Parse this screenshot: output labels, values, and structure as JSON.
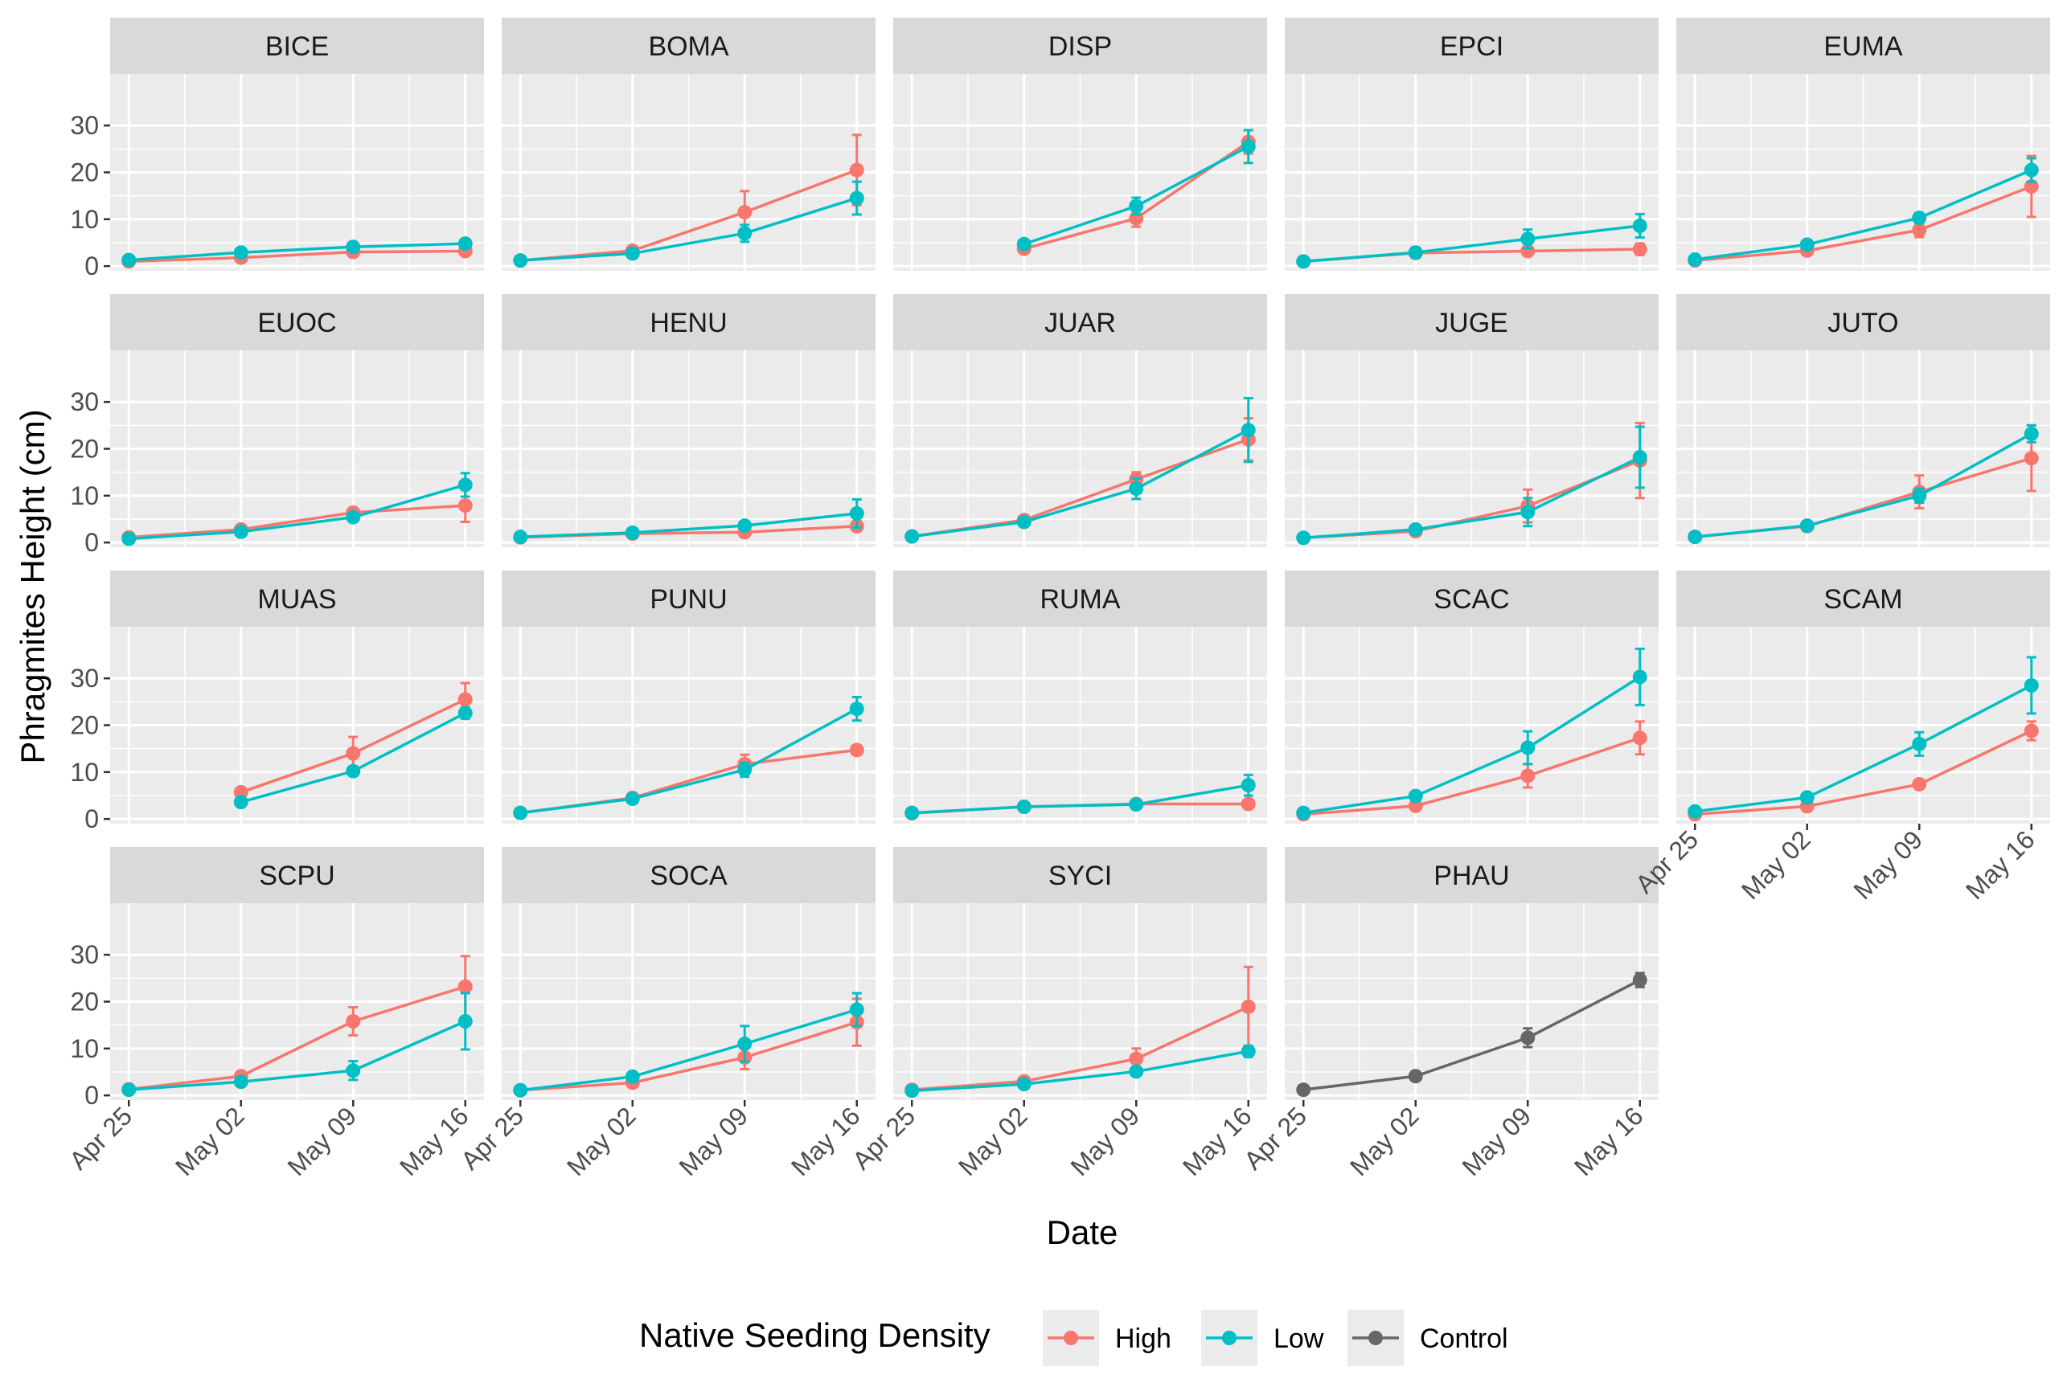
{
  "chart_data": {
    "type": "line",
    "subtype": "faceted line chart with error bars",
    "xlabel": "Date",
    "ylabel": "Phragmites Height (cm)",
    "x_ticks": [
      "Apr 25",
      "May 02",
      "May 09",
      "May 16"
    ],
    "y_ticks": [
      0,
      10,
      20,
      30
    ],
    "ylim": [
      -1,
      41
    ],
    "grid": true,
    "legend": {
      "title": "Native Seeding Density",
      "position": "bottom",
      "entries": [
        {
          "name": "High",
          "color": "#F8766D"
        },
        {
          "name": "Low",
          "color": "#00BFC4"
        },
        {
          "name": "Control",
          "color": "#666666"
        }
      ]
    },
    "panels": [
      {
        "name": "BICE",
        "series": [
          {
            "name": "High",
            "y": [
              1.0,
              1.8,
              3.0,
              3.2
            ],
            "err": [
              0.3,
              0.3,
              0.5,
              0.6
            ]
          },
          {
            "name": "Low",
            "y": [
              1.3,
              2.9,
              4.1,
              4.8
            ],
            "err": [
              0.3,
              0.4,
              0.6,
              0.9
            ]
          }
        ]
      },
      {
        "name": "BOMA",
        "series": [
          {
            "name": "High",
            "y": [
              1.2,
              3.3,
              11.5,
              20.5
            ],
            "err": [
              0.2,
              0.5,
              4.5,
              7.5
            ]
          },
          {
            "name": "Low",
            "y": [
              1.2,
              2.7,
              7.0,
              14.5
            ],
            "err": [
              0.2,
              0.4,
              1.8,
              3.5
            ]
          }
        ]
      },
      {
        "name": "DISP",
        "series": [
          {
            "name": "High",
            "y": [
              null,
              3.7,
              10.2,
              26.5
            ],
            "err": [
              0,
              0.8,
              1.8,
              2.5
            ]
          },
          {
            "name": "Low",
            "y": [
              null,
              4.7,
              12.8,
              25.5
            ],
            "err": [
              0,
              0.8,
              1.8,
              3.5
            ]
          }
        ]
      },
      {
        "name": "EPCI",
        "series": [
          {
            "name": "High",
            "y": [
              1.0,
              2.8,
              3.2,
              3.6
            ],
            "err": [
              0.2,
              0.4,
              0.5,
              1.2
            ]
          },
          {
            "name": "Low",
            "y": [
              1.0,
              2.9,
              5.8,
              8.6
            ],
            "err": [
              0.2,
              1.1,
              2.0,
              2.5
            ]
          }
        ]
      },
      {
        "name": "EUMA",
        "series": [
          {
            "name": "High",
            "y": [
              1.2,
              3.3,
              7.7,
              17.0
            ],
            "err": [
              0.2,
              0.5,
              1.5,
              6.5
            ]
          },
          {
            "name": "Low",
            "y": [
              1.4,
              4.6,
              10.3,
              20.5
            ],
            "err": [
              0.2,
              0.6,
              1.0,
              2.5
            ]
          }
        ]
      },
      {
        "name": "EUOC",
        "series": [
          {
            "name": "High",
            "y": [
              1.1,
              2.8,
              6.4,
              7.9
            ],
            "err": [
              0.2,
              0.4,
              0.8,
              3.5
            ]
          },
          {
            "name": "Low",
            "y": [
              0.8,
              2.3,
              5.4,
              12.3
            ],
            "err": [
              0.2,
              0.4,
              0.8,
              2.5
            ]
          }
        ]
      },
      {
        "name": "HENU",
        "series": [
          {
            "name": "High",
            "y": [
              1.1,
              1.9,
              2.2,
              3.5
            ],
            "err": [
              0.2,
              0.3,
              0.4,
              1.0
            ]
          },
          {
            "name": "Low",
            "y": [
              1.2,
              2.1,
              3.6,
              6.2
            ],
            "err": [
              0.2,
              0.3,
              0.6,
              3.0
            ]
          }
        ]
      },
      {
        "name": "JUAR",
        "series": [
          {
            "name": "High",
            "y": [
              1.3,
              4.8,
              13.5,
              22.0
            ],
            "err": [
              0.2,
              0.6,
              1.5,
              4.5
            ]
          },
          {
            "name": "Low",
            "y": [
              1.3,
              4.4,
              11.5,
              24.0
            ],
            "err": [
              0.2,
              0.6,
              2.2,
              6.8
            ]
          }
        ]
      },
      {
        "name": "JUGE",
        "series": [
          {
            "name": "High",
            "y": [
              1.0,
              2.4,
              7.8,
              17.5
            ],
            "err": [
              0.2,
              0.4,
              3.5,
              8.0
            ]
          },
          {
            "name": "Low",
            "y": [
              1.0,
              2.8,
              6.5,
              18.2
            ],
            "err": [
              0.2,
              0.4,
              3.0,
              6.5
            ]
          }
        ]
      },
      {
        "name": "JUTO",
        "series": [
          {
            "name": "High",
            "y": [
              1.2,
              3.5,
              10.8,
              18.0
            ],
            "err": [
              0.2,
              1.0,
              3.5,
              7.0
            ]
          },
          {
            "name": "Low",
            "y": [
              1.2,
              3.6,
              10.0,
              23.2
            ],
            "err": [
              0.2,
              0.8,
              1.5,
              1.8
            ]
          }
        ]
      },
      {
        "name": "MUAS",
        "series": [
          {
            "name": "High",
            "y": [
              null,
              5.7,
              14.0,
              25.5
            ],
            "err": [
              0,
              0.8,
              3.5,
              3.5
            ]
          },
          {
            "name": "Low",
            "y": [
              null,
              3.6,
              10.2,
              22.6
            ],
            "err": [
              0,
              0.6,
              1.0,
              1.2
            ]
          }
        ]
      },
      {
        "name": "PUNU",
        "series": [
          {
            "name": "High",
            "y": [
              1.3,
              4.5,
              11.7,
              14.7
            ],
            "err": [
              0.2,
              0.6,
              2.0,
              1.0
            ]
          },
          {
            "name": "Low",
            "y": [
              1.3,
              4.3,
              10.5,
              23.5
            ],
            "err": [
              0.2,
              0.6,
              1.5,
              2.5
            ]
          }
        ]
      },
      {
        "name": "RUMA",
        "series": [
          {
            "name": "High",
            "y": [
              1.2,
              2.6,
              3.2,
              3.2
            ],
            "err": [
              0.2,
              0.3,
              0.4,
              0.4
            ]
          },
          {
            "name": "Low",
            "y": [
              1.3,
              2.6,
              3.1,
              7.2
            ],
            "err": [
              0.2,
              0.3,
              0.4,
              2.2
            ]
          }
        ]
      },
      {
        "name": "SCAC",
        "series": [
          {
            "name": "High",
            "y": [
              1.0,
              2.8,
              9.2,
              17.3
            ],
            "err": [
              0.2,
              0.4,
              2.5,
              3.5
            ]
          },
          {
            "name": "Low",
            "y": [
              1.3,
              4.9,
              15.2,
              30.3
            ],
            "err": [
              0.2,
              0.6,
              3.5,
              6.0
            ]
          }
        ]
      },
      {
        "name": "SCAM",
        "series": [
          {
            "name": "High",
            "y": [
              1.0,
              2.7,
              7.4,
              18.8
            ],
            "err": [
              0.2,
              0.4,
              0.9,
              2.0
            ]
          },
          {
            "name": "Low",
            "y": [
              1.6,
              4.6,
              16.0,
              28.5
            ],
            "err": [
              0.2,
              0.5,
              2.5,
              6.0
            ]
          }
        ]
      },
      {
        "name": "SCPU",
        "series": [
          {
            "name": "High",
            "y": [
              1.3,
              4.1,
              15.8,
              23.2
            ],
            "err": [
              0.2,
              0.6,
              3.0,
              6.5
            ]
          },
          {
            "name": "Low",
            "y": [
              1.2,
              2.9,
              5.3,
              15.8
            ],
            "err": [
              0.2,
              0.5,
              2.0,
              6.0
            ]
          }
        ]
      },
      {
        "name": "SOCA",
        "series": [
          {
            "name": "High",
            "y": [
              1.1,
              2.7,
              8.1,
              15.6
            ],
            "err": [
              0.2,
              0.4,
              2.5,
              5.0
            ]
          },
          {
            "name": "Low",
            "y": [
              1.1,
              4.0,
              11.0,
              18.3
            ],
            "err": [
              0.2,
              0.5,
              3.8,
              3.5
            ]
          }
        ]
      },
      {
        "name": "SYCI",
        "series": [
          {
            "name": "High",
            "y": [
              1.2,
              3.0,
              7.8,
              18.9
            ],
            "err": [
              0.2,
              0.4,
              2.2,
              8.5
            ]
          },
          {
            "name": "Low",
            "y": [
              1.0,
              2.4,
              5.1,
              9.4
            ],
            "err": [
              0.2,
              0.4,
              0.8,
              1.2
            ]
          }
        ]
      },
      {
        "name": "PHAU",
        "series": [
          {
            "name": "Control",
            "y": [
              1.2,
              4.1,
              12.3,
              24.6
            ],
            "err": [
              0.2,
              0.4,
              2.0,
              1.5
            ]
          }
        ]
      }
    ]
  }
}
